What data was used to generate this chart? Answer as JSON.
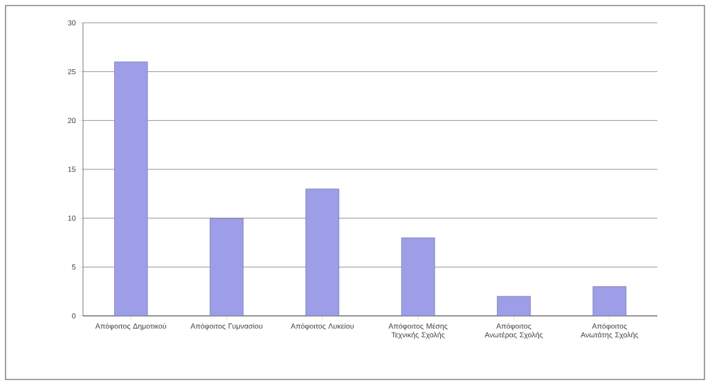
{
  "chart_data": {
    "type": "bar",
    "categories": [
      "Απόφοιτος Δημοτικού",
      "Απόφοιτος Γυμνασίου",
      "Απόφοιτος Λυκείου",
      "Απόφοιτος Μέσης Τεχνικής Σχολής",
      "Απόφοιτος Ανωτέρας Σχολής",
      "Απόφοιτος Ανωτάτης Σχολής"
    ],
    "values": [
      26,
      10,
      13,
      8,
      2,
      3
    ],
    "color": "#9d9de8",
    "ylim": [
      0,
      30
    ],
    "yticks": [
      0,
      5,
      10,
      15,
      20,
      25,
      30
    ],
    "grid": "y"
  }
}
